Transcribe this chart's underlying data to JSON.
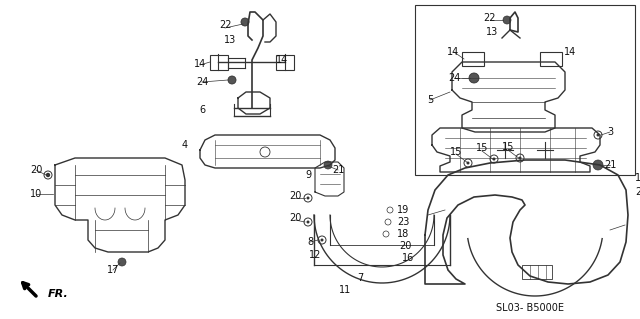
{
  "background_color": "#ffffff",
  "line_color": "#333333",
  "label_color": "#111111",
  "fig_width": 6.4,
  "fig_height": 3.19,
  "dpi": 100,
  "diagram_code": "SL03- B5000E",
  "fr_label": "FR."
}
